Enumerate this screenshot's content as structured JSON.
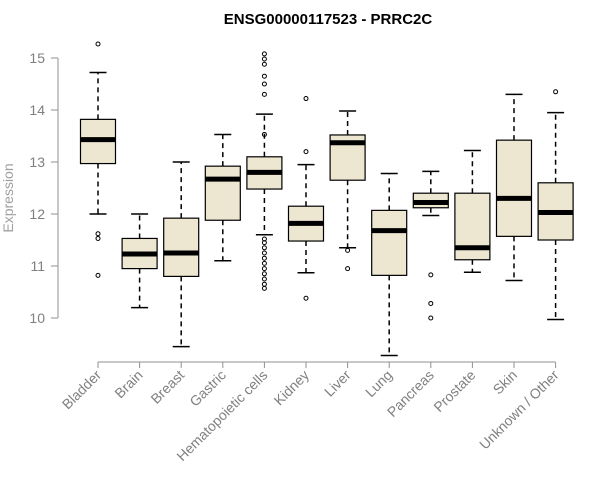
{
  "chart_data": {
    "type": "boxplot",
    "title": "ENSG00000117523 - PRRC2C",
    "xlabel": "",
    "ylabel": "Expression",
    "ylim": [
      9.0,
      15.6
    ],
    "yticks": [
      10,
      11,
      12,
      13,
      14,
      15
    ],
    "grid": false,
    "box_fill": "#ede6d1",
    "categories": [
      "Bladder",
      "Brain",
      "Breast",
      "Gastric",
      "Hematopoietic cells",
      "Kidney",
      "Liver",
      "Lung",
      "Pancreas",
      "Prostate",
      "Skin",
      "Unknown / Other"
    ],
    "boxes": [
      {
        "min": 12.0,
        "q1": 12.97,
        "median": 13.43,
        "q3": 13.82,
        "max": 14.72,
        "outliers": [
          15.27,
          11.62,
          11.53,
          10.82
        ]
      },
      {
        "min": 10.2,
        "q1": 10.95,
        "median": 11.23,
        "q3": 11.53,
        "max": 12.0,
        "outliers": []
      },
      {
        "min": 9.45,
        "q1": 10.8,
        "median": 11.25,
        "q3": 11.92,
        "max": 13.0,
        "outliers": []
      },
      {
        "min": 11.1,
        "q1": 11.88,
        "median": 12.67,
        "q3": 12.92,
        "max": 13.53,
        "outliers": []
      },
      {
        "min": 11.6,
        "q1": 12.48,
        "median": 12.8,
        "q3": 13.1,
        "max": 13.92,
        "outliers": [
          15.08,
          14.98,
          14.88,
          14.65,
          14.5,
          14.3,
          13.53,
          11.52,
          11.45,
          11.35,
          11.25,
          11.15,
          11.05,
          10.95,
          10.85,
          10.75,
          10.65,
          10.57
        ]
      },
      {
        "min": 10.87,
        "q1": 11.48,
        "median": 11.82,
        "q3": 12.15,
        "max": 12.95,
        "outliers": [
          14.22,
          13.2,
          10.38
        ]
      },
      {
        "min": 11.35,
        "q1": 12.65,
        "median": 13.37,
        "q3": 13.52,
        "max": 13.98,
        "outliers": [
          11.3,
          10.95
        ]
      },
      {
        "min": 9.28,
        "q1": 10.82,
        "median": 11.68,
        "q3": 12.07,
        "max": 12.78,
        "outliers": []
      },
      {
        "min": 11.97,
        "q1": 12.12,
        "median": 12.22,
        "q3": 12.4,
        "max": 12.82,
        "outliers": [
          10.83,
          10.28,
          10.0
        ]
      },
      {
        "min": 10.88,
        "q1": 11.12,
        "median": 11.35,
        "q3": 12.4,
        "max": 13.22,
        "outliers": []
      },
      {
        "min": 10.72,
        "q1": 11.57,
        "median": 12.3,
        "q3": 13.42,
        "max": 14.3,
        "outliers": []
      },
      {
        "min": 9.97,
        "q1": 11.5,
        "median": 12.03,
        "q3": 12.6,
        "max": 13.95,
        "outliers": [
          14.35
        ]
      }
    ]
  }
}
